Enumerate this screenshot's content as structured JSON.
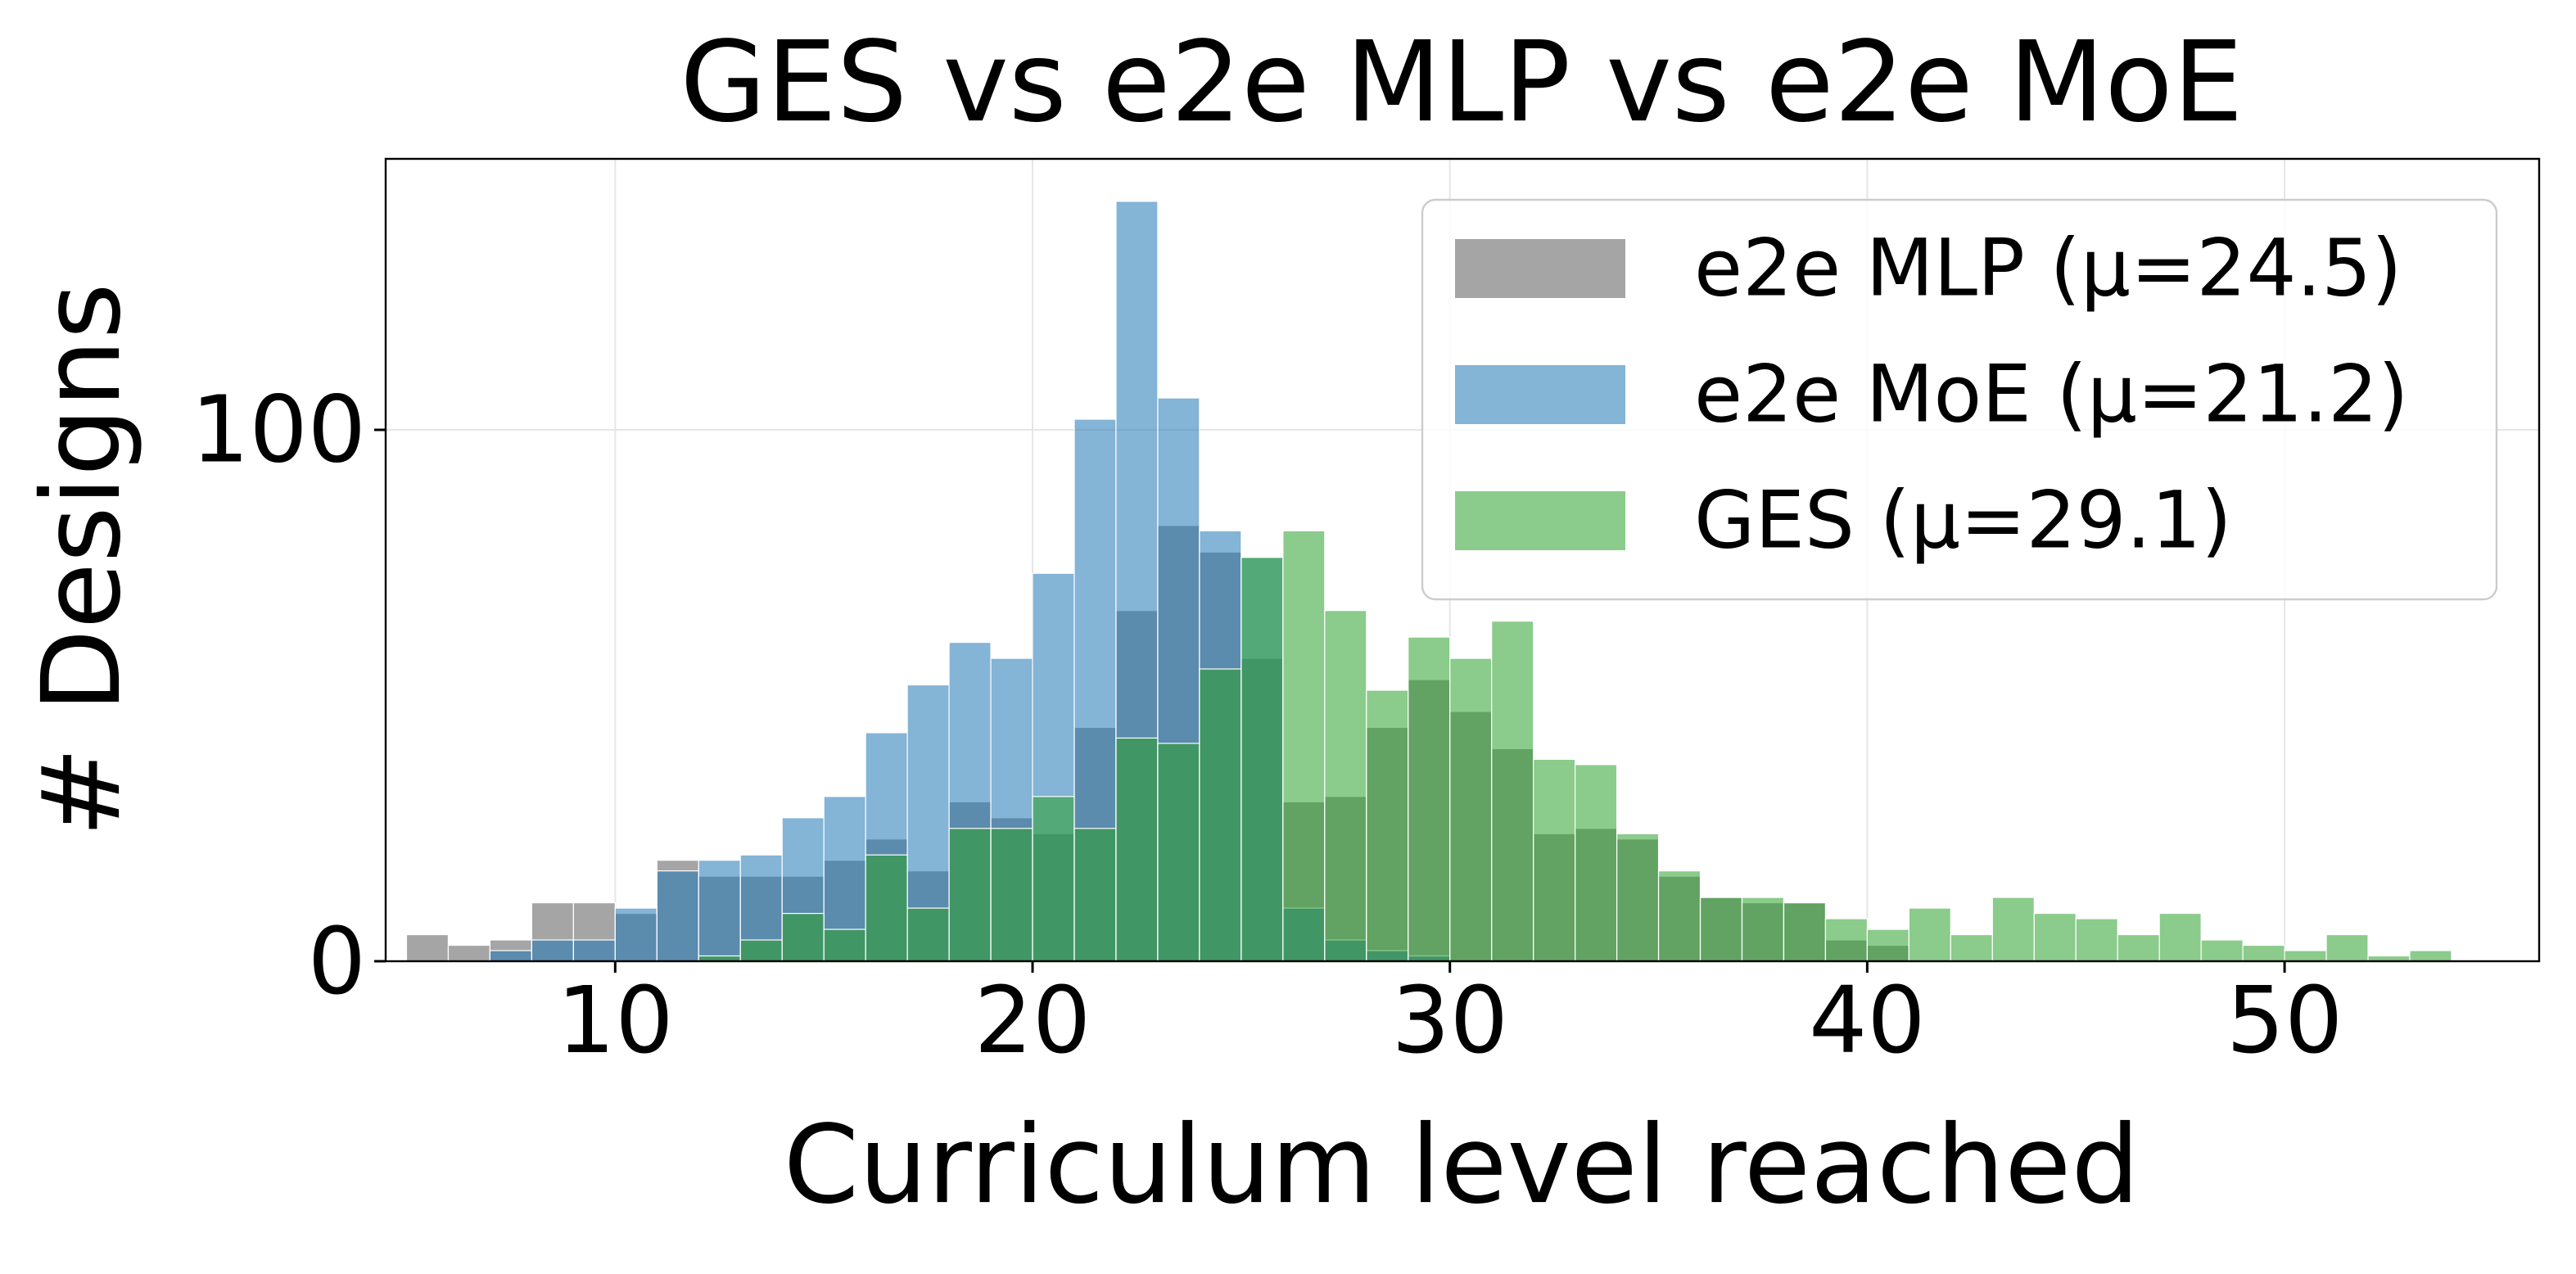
{
  "chart_data": {
    "type": "histogram",
    "title": "GES vs e2e MLP vs e2e MoE",
    "xlabel": "Curriculum level reached",
    "ylabel": "# Designs",
    "xlim": [
      4.5,
      56.1
    ],
    "ylim": [
      0,
      151
    ],
    "xticks": [
      10,
      20,
      30,
      40,
      50
    ],
    "yticks": [
      0,
      100
    ],
    "grid": true,
    "legend": "upper right",
    "series": [
      {
        "name": "e2e MLP (μ=24.5)",
        "color": "#7f7f7f",
        "bins": [
          5,
          6,
          7,
          8,
          9,
          10,
          11,
          12,
          13,
          14,
          15,
          16,
          17,
          18,
          19,
          20,
          21,
          22,
          23,
          24,
          25,
          26,
          27,
          28,
          29,
          30,
          31,
          32,
          33,
          34,
          35,
          36,
          37,
          38,
          39,
          40,
          41
        ],
        "values": [
          5,
          3,
          4,
          11,
          11,
          9,
          19,
          16,
          16,
          16,
          19,
          23,
          17,
          30,
          27,
          24,
          44,
          66,
          82,
          77,
          57,
          30,
          31,
          44,
          53,
          47,
          40,
          24,
          25,
          23,
          16,
          12,
          11,
          11,
          4,
          3
        ]
      },
      {
        "name": "e2e MoE (μ=21.2)",
        "color": "#1f77b4",
        "bins": [
          7,
          8,
          9,
          10,
          11,
          12,
          13,
          14,
          15,
          16,
          17,
          18,
          19,
          20,
          21,
          22,
          23,
          24,
          25,
          26,
          27,
          28,
          29,
          30
        ],
        "values": [
          2,
          4,
          4,
          10,
          17,
          19,
          20,
          27,
          31,
          43,
          52,
          60,
          57,
          73,
          102,
          143,
          106,
          81,
          76,
          10,
          4,
          2,
          1
        ]
      },
      {
        "name": "GES (μ=29.1)",
        "color": "#2ca02c",
        "bins": [
          12,
          13,
          14,
          15,
          16,
          17,
          18,
          19,
          20,
          21,
          22,
          23,
          24,
          25,
          26,
          27,
          28,
          29,
          30,
          31,
          32,
          33,
          34,
          35,
          36,
          37,
          38,
          39,
          40,
          41,
          42,
          43,
          44,
          45,
          46,
          47,
          48,
          49,
          50,
          51,
          52,
          53,
          54
        ],
        "values": [
          1,
          4,
          9,
          6,
          20,
          10,
          25,
          25,
          31,
          25,
          42,
          41,
          55,
          76,
          81,
          66,
          51,
          61,
          57,
          64,
          38,
          37,
          24,
          17,
          12,
          12,
          11,
          8,
          6,
          10,
          5,
          12,
          9,
          8,
          5,
          9,
          4,
          3,
          2,
          5,
          1,
          2
        ]
      }
    ]
  }
}
